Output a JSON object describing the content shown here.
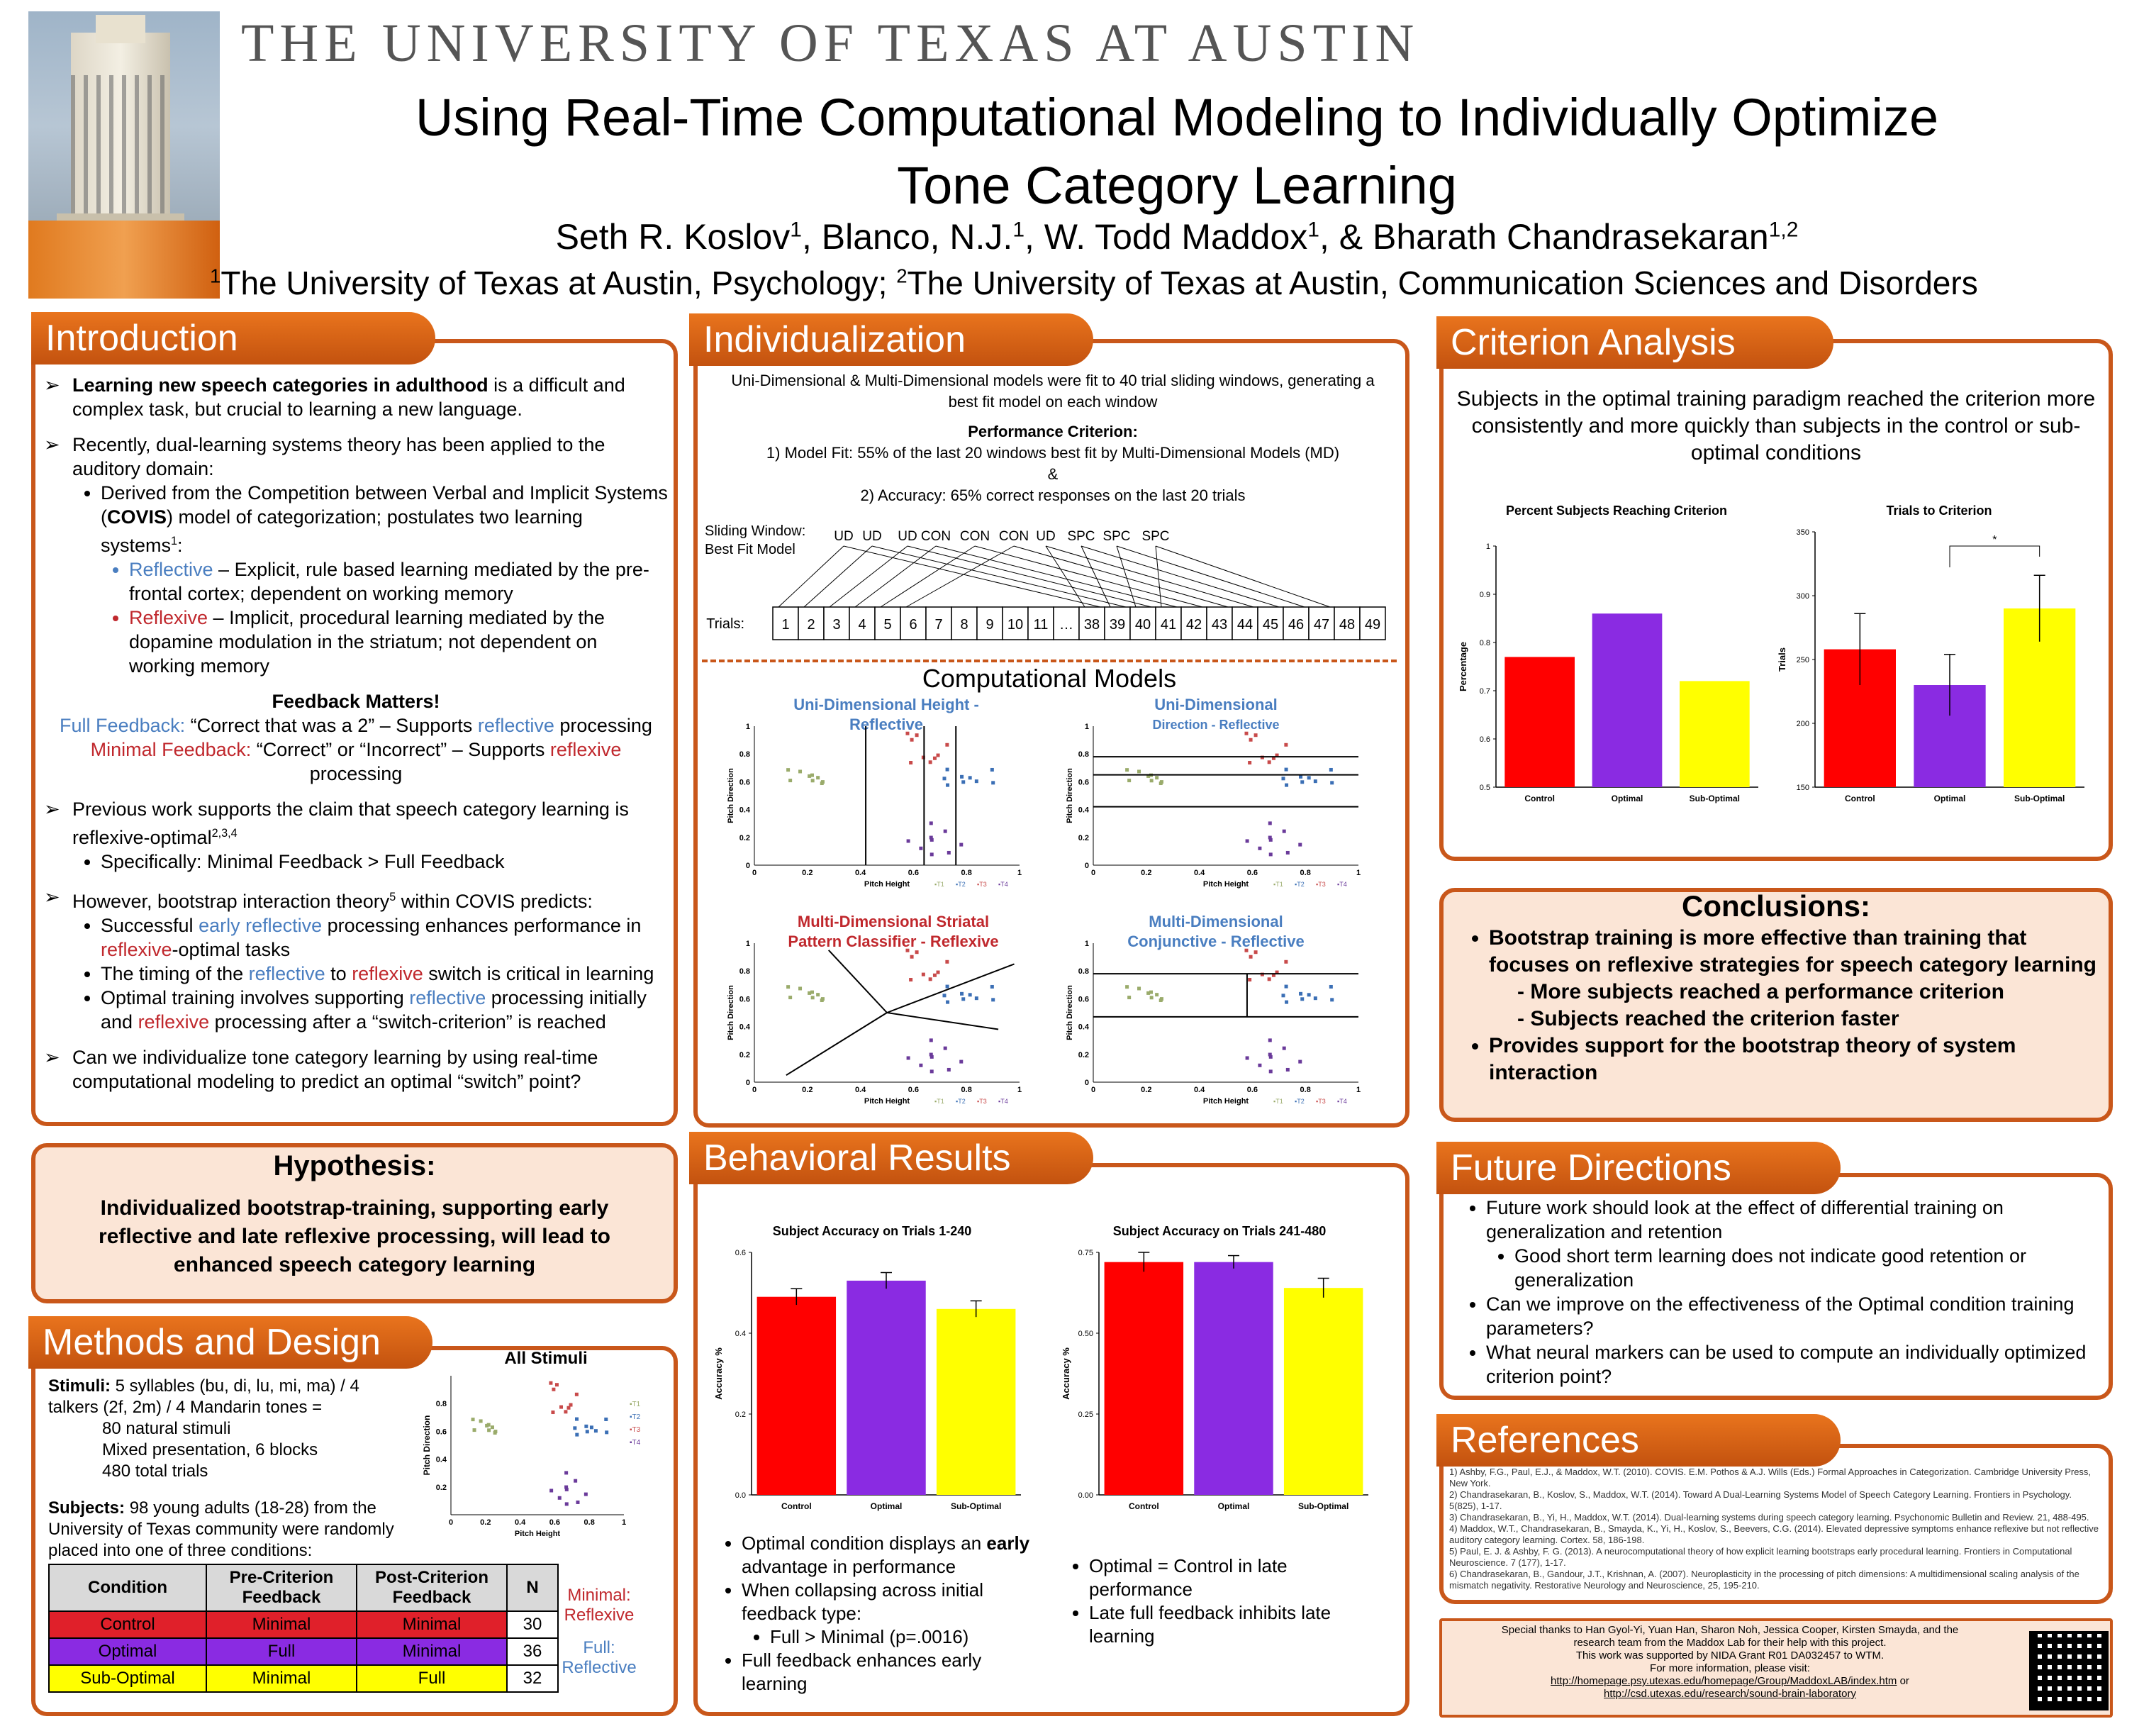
{
  "header": {
    "university": "THE UNIVERSITY OF TEXAS AT AUSTIN",
    "title_line1": "Using Real-Time Computational Modeling to Individually Optimize",
    "title_line2": "Tone Category Learning",
    "authors": {
      "a1": "Seth R. Koslov",
      "s1": "1",
      "a2": ", Blanco, N.J.",
      "s2": "1",
      "a3": ", W. Todd Maddox",
      "s3": "1",
      "a4": ", & Bharath Chandrasekaran",
      "s4": "1,2"
    },
    "affiliations": {
      "s1": "1",
      "a1": "The University of Texas at Austin, Psychology; ",
      "s2": "2",
      "a2": "The University of Texas at Austin, Communication Sciences and Disorders"
    }
  },
  "intro": {
    "heading": "Introduction",
    "b1_bold": "Learning new speech categories in adulthood",
    "b1_rest": " is a difficult and complex task, but crucial to learning a new language.",
    "b2": "Recently, dual-learning systems theory has been applied to the auditory domain:",
    "b2_sub_pre": "Derived from the Competition between Verbal and Implicit Systems (",
    "b2_sub_bold": "COVIS",
    "b2_sub_post": ") model of categorization; postulates two learning systems",
    "b2_sub_sup": "1",
    "b2_sub_colon": ":",
    "reflective_label": "Reflective",
    "reflective_text": " – Explicit, rule based learning mediated by the pre-frontal cortex; dependent on working memory",
    "reflexive_label": "Reflexive",
    "reflexive_text": " – Implicit, procedural learning mediated by the dopamine modulation in the striatum; not dependent on working memory",
    "fm_title": "Feedback Matters!",
    "full_fb_label": "Full Feedback:",
    "full_fb_text": " “Correct that was a 2” – Supports ",
    "full_fb_word": "reflective",
    "full_fb_end": " processing",
    "min_fb_label": "Minimal Feedback:",
    "min_fb_text": " “Correct” or “Incorrect” – Supports ",
    "min_fb_word": "reflexive",
    "min_fb_end": " processing",
    "b3": "Previous work supports the claim that speech category learning is reflexive-optimal",
    "b3_sup": "2,3,4",
    "b3_sub": "Specifically: Minimal Feedback > Full Feedback",
    "b4_pre": "However, bootstrap interaction theory",
    "b4_sup": "5",
    "b4_post": " within COVIS predicts:",
    "b4_s1_a": "Successful ",
    "b4_s1_b": "early reflective",
    "b4_s1_c": " processing enhances performance in ",
    "b4_s1_d": "reflexive",
    "b4_s1_e": "-optimal tasks",
    "b4_s2_a": "The timing of the ",
    "b4_s2_b": "reflective",
    "b4_s2_c": " to ",
    "b4_s2_d": "reflexive",
    "b4_s2_e": " switch is critical in learning",
    "b4_s3_a": "Optimal training involves supporting ",
    "b4_s3_b": "reflective",
    "b4_s3_c": " processing initially and ",
    "b4_s3_d": "reflexive",
    "b4_s3_e": " processing after a “switch-criterion” is reached",
    "b5": "Can we individualize tone category learning by using real-time computational modeling to predict an optimal “switch” point?"
  },
  "hypothesis": {
    "heading": "Hypothesis:",
    "text": "Individualized bootstrap-training, supporting early reflective and late reflexive processing, will lead to enhanced speech category learning"
  },
  "methods": {
    "heading": "Methods and Design",
    "stimuli_label": "Stimuli:",
    "stimuli_text": " 5 syllables (bu, di, lu, mi, ma) / 4 talkers (2f, 2m) / 4  Mandarin tones =",
    "stimuli_l2": "80 natural stimuli",
    "stimuli_l3": "Mixed presentation, 6 blocks",
    "stimuli_l4": "480 total trials",
    "subjects_label": "Subjects:",
    "subjects_text": " 98 young adults (18-28) from the University of Texas community were randomly placed into one of three conditions:",
    "table_headers": [
      "Condition",
      "Pre-Criterion Feedback",
      "Post-Criterion Feedback",
      "N"
    ],
    "table_rows": [
      {
        "cond": "Control",
        "pre": "Minimal",
        "post": "Minimal",
        "n": "30",
        "color": "#e0202a"
      },
      {
        "cond": "Optimal",
        "pre": "Full",
        "post": "Minimal",
        "n": "36",
        "color": "#8a2be2"
      },
      {
        "cond": "Sub-Optimal",
        "pre": "Minimal",
        "post": "Full",
        "n": "32",
        "color": "#ffff00"
      }
    ],
    "minimal_label": "Minimal:",
    "minimal_val": "Reflexive",
    "full_label": "Full:",
    "full_val": "Reflective",
    "plot_title": "All Stimuli",
    "plot_xlabel": "Pitch Height",
    "plot_ylabel": "Pitch Direction"
  },
  "individualization": {
    "heading": "Individualization",
    "line1": "Uni-Dimensional & Multi-Dimensional models were fit to 40 trial sliding windows, generating a best fit model on each window",
    "perf_title": "Performance Criterion:",
    "perf1": "1) Model Fit: 55% of the last 20 windows best fit by Multi-Dimensional Models (MD)",
    "perf_amp": "&",
    "perf2": "2) Accuracy: 65% correct responses on the last 20 trials",
    "sliding_label": "Sliding Window:",
    "best_fit_label": "Best Fit Model",
    "trials_label": "Trials:",
    "models_row": [
      "UD",
      "UD",
      "UD",
      "CON",
      "CON",
      "CON",
      "UD",
      "SPC",
      "SPC",
      "SPC"
    ],
    "trials_row": [
      "1",
      "2",
      "3",
      "4",
      "5",
      "6",
      "7",
      "8",
      "9",
      "10",
      "11",
      "…",
      "38",
      "39",
      "40",
      "41",
      "42",
      "43",
      "44",
      "45",
      "46",
      "47",
      "48",
      "49"
    ],
    "cm_title": "Computational Models",
    "m1_title": "Uni-Dimensional Height - Reflective",
    "m2_title_a": "Uni-Dimensional",
    "m2_title_b": "Direction - Reflective",
    "m3_title": "Multi-Dimensional Striatal Pattern Classifier - Reflexive",
    "m4_title": "Multi-Dimensional Conjunctive - Reflective",
    "xlabel": "Pitch Height",
    "ylabel": "Pitch Direction",
    "legend": [
      "T1",
      "T2",
      "T3",
      "T4"
    ]
  },
  "behavioral": {
    "heading": "Behavioral Results",
    "b1": "Optimal condition displays an ",
    "b1_bold": "early",
    "b1_rest": " advantage in performance",
    "b2": "When collapsing across initial feedback type:",
    "b2_sub": "Full > Minimal (p=.0016)",
    "b3": "Full feedback enhances early learning",
    "b4": "Optimal = Control in late performance",
    "b5": "Late full feedback inhibits late learning"
  },
  "criterion": {
    "heading": "Criterion Analysis",
    "summary": "Subjects in the optimal training paradigm reached the criterion more consistently and more quickly than subjects in the control or sub-optimal conditions"
  },
  "conclusions": {
    "heading": "Conclusions:",
    "c1": "Bootstrap training is more effective than training that focuses on reflexive strategies for speech category learning",
    "c1a": "- More subjects reached a performance criterion",
    "c1b": "- Subjects reached the criterion faster",
    "c2": "Provides support for the bootstrap theory of system interaction"
  },
  "future": {
    "heading": "Future Directions",
    "f1": "Future work should look at the effect of differential training on generalization and retention",
    "f1a": "Good short term learning does not indicate good retention or generalization",
    "f2": "Can we improve on the effectiveness of the Optimal condition training parameters?",
    "f3": "What neural markers can be used to compute an individually optimized criterion point?"
  },
  "references": {
    "heading": "References",
    "items": [
      "1)  Ashby, F.G., Paul, E.J., & Maddox, W.T. (2010). COVIS. E.M. Pothos & A.J. Wills (Eds.) Formal Approaches in Categorization. Cambridge University Press, New York.",
      "2)  Chandrasekaran, B., Koslov, S., Maddox, W.T. (2014). Toward A Dual-Learning Systems Model of Speech Category Learning. Frontiers in Psychology. 5(825), 1-17.",
      "3)  Chandrasekaran, B., Yi, H., Maddox, W.T. (2014).  Dual-learning systems during speech category learning. Psychonomic Bulletin and Review. 21, 488-495.",
      "4)  Maddox, W.T., Chandrasekaran, B., Smayda, K., Yi, H., Koslov, S., Beevers, C.G. (2014). Elevated depressive symptoms enhance reflexive but not reflective auditory category learning. Cortex. 58, 186-198.",
      "5)  Paul, E. J. & Ashby, F. G. (2013). A neurocomputational theory of how explicit learning bootstraps early procedural learning.  Frontiers in Computational Neuroscience. 7 (177), 1-17.",
      "6)  Chandrasekaran, B., Gandour, J.T., Krishnan, A. (2007). Neuroplasticity in the processing of pitch dimensions: A multidimensional scaling analysis of the mismatch negativity. Restorative Neurology and Neuroscience, 25, 195-210."
    ]
  },
  "ack": {
    "l1": "Special thanks to Han Gyol-Yi, Yuan Han, Sharon Noh, Jessica Cooper, Kirsten Smayda, and the",
    "l2": "research team from the Maddox Lab for their help with this project.",
    "l3": "This work was supported by NIDA Grant R01 DA032457 to WTM.",
    "l4": "For more information, please visit:",
    "link1": "http://homepage.psy.utexas.edu/homepage/Group/MaddoxLAB/index.htm",
    "or": " or",
    "link2": "http://csd.utexas.edu/research/sound-brain-laboratory"
  },
  "chart_data": [
    {
      "type": "bar",
      "title": "Percent Subjects Reaching Criterion",
      "ylabel": "Percentage",
      "categories": [
        "Control",
        "Optimal",
        "Sub-Optimal"
      ],
      "values": [
        0.77,
        0.86,
        0.72
      ],
      "colors": [
        "#ff0000",
        "#8a2be2",
        "#ffff00"
      ],
      "ylim": [
        0.5,
        1
      ],
      "yticks": [
        "0.5",
        "0.6",
        "0.7",
        "0.8",
        "0.9",
        "1"
      ]
    },
    {
      "type": "bar",
      "title": "Trials to Criterion",
      "ylabel": "Trials",
      "categories": [
        "Control",
        "Optimal",
        "Sub-Optimal"
      ],
      "values": [
        258,
        230,
        290
      ],
      "errors": [
        28,
        24,
        26
      ],
      "colors": [
        "#ff0000",
        "#8a2be2",
        "#ffff00"
      ],
      "ylim": [
        150,
        350
      ],
      "yticks": [
        "150",
        "200",
        "250",
        "300",
        "350"
      ],
      "annotation": "*"
    },
    {
      "type": "bar",
      "title": "Subject Accuracy on Trials 1-240",
      "ylabel": "Accuracy %",
      "categories": [
        "Control",
        "Optimal",
        "Sub-Optimal"
      ],
      "values": [
        0.49,
        0.53,
        0.46
      ],
      "errors": [
        0.02,
        0.02,
        0.02
      ],
      "colors": [
        "#ff0000",
        "#8a2be2",
        "#ffff00"
      ],
      "ylim": [
        0,
        0.6
      ],
      "yticks": [
        "0.0",
        "0.2",
        "0.4",
        "0.6"
      ]
    },
    {
      "type": "bar",
      "title": "Subject Accuracy on Trials 241-480",
      "ylabel": "Accuracy %",
      "categories": [
        "Control",
        "Optimal",
        "Sub-Optimal"
      ],
      "values": [
        0.72,
        0.72,
        0.64
      ],
      "errors": [
        0.03,
        0.02,
        0.03
      ],
      "colors": [
        "#ff0000",
        "#8a2be2",
        "#ffff00"
      ],
      "ylim": [
        0,
        0.75
      ],
      "yticks": [
        "0.00",
        "0.25",
        "0.50",
        "0.75"
      ]
    }
  ]
}
